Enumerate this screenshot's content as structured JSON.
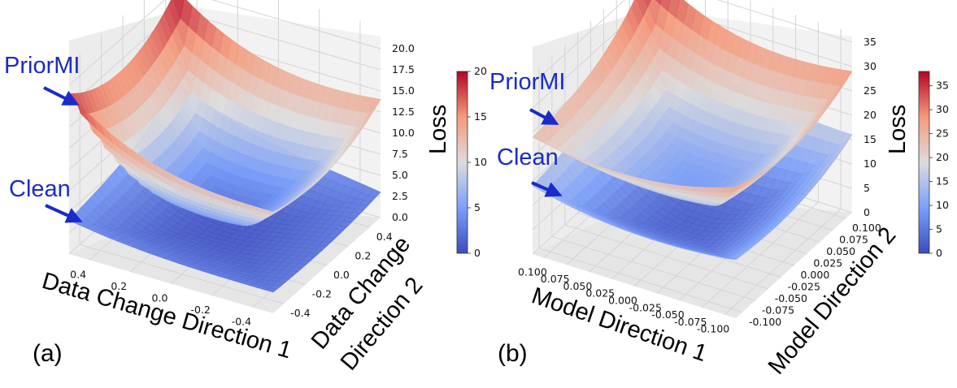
{
  "figure": {
    "annotation_prior": "PriorMI",
    "annotation_clean": "Clean",
    "arrow_color": "#1a2bc9"
  },
  "chart_data": [
    {
      "type": "surface3d",
      "panel_label": "(a)",
      "xlabel": "Data Change Direction 1",
      "ylabel_line1": "Data Change",
      "ylabel_line2": "Direction 2",
      "zlabel": "Loss",
      "x_ticks": [
        "-0.4",
        "-0.2",
        "0.0",
        "0.2",
        "0.4"
      ],
      "y_ticks": [
        "-0.4",
        "-0.2",
        "0.0",
        "0.2",
        "0.4"
      ],
      "z_ticks": [
        "0.0",
        "2.5",
        "5.0",
        "7.5",
        "10.0",
        "12.5",
        "15.0",
        "17.5",
        "20.0"
      ],
      "zlim": [
        0,
        20
      ],
      "colorbar": {
        "min": 0,
        "max": 20,
        "ticks": [
          "0",
          "5",
          "10",
          "15",
          "20"
        ]
      },
      "series": [
        {
          "name": "PriorMI",
          "min": 3,
          "corners": [
            12,
            19,
            20,
            14
          ]
        },
        {
          "name": "Clean",
          "min": 0.5,
          "corners": [
            2.5,
            4,
            9,
            3
          ]
        }
      ]
    },
    {
      "type": "surface3d",
      "panel_label": "(b)",
      "xlabel": "Model Direction 1",
      "ylabel": "Model Direction 2",
      "zlabel": "Loss",
      "x_ticks": [
        "-0.100",
        "-0.075",
        "-0.050",
        "-0.025",
        "0.000",
        "0.025",
        "0.050",
        "0.075",
        "0.100"
      ],
      "y_ticks": [
        "-0.100",
        "-0.075",
        "-0.050",
        "-0.025",
        "0.000",
        "0.025",
        "0.050",
        "0.075",
        "0.100"
      ],
      "z_ticks": [
        "0",
        "5",
        "10",
        "15",
        "20",
        "25",
        "30",
        "35"
      ],
      "zlim": [
        0,
        35
      ],
      "colorbar": {
        "min": 0,
        "max": 38,
        "ticks": [
          "0",
          "5",
          "10",
          "15",
          "20",
          "25",
          "30",
          "35"
        ]
      },
      "series": [
        {
          "name": "PriorMI",
          "min": 10,
          "corners": [
            27,
            24,
            37,
            29
          ]
        },
        {
          "name": "Clean",
          "min": 2,
          "corners": [
            12,
            14,
            28,
            16
          ]
        }
      ]
    }
  ]
}
